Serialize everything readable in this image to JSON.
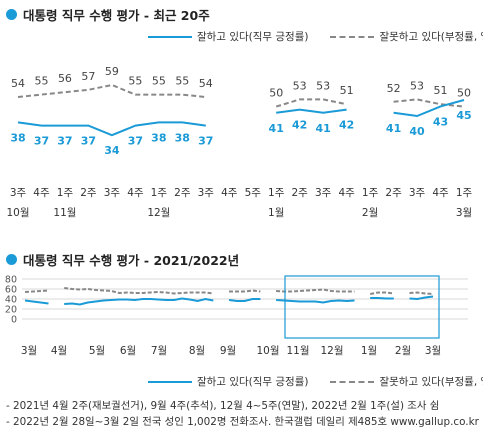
{
  "colors": {
    "approve": "#1a9ad6",
    "disapprove": "#888888",
    "highlight": "#1a9ad6"
  },
  "chart_data": [
    {
      "type": "line",
      "title": "대통령 직무 수행 평가 - 최근 20주",
      "categories": [
        "3주",
        "4주",
        "1주",
        "2주",
        "3주",
        "4주",
        "1주",
        "2주",
        "3주",
        "4주",
        "5주",
        "1주",
        "2주",
        "3주",
        "4주",
        "1주",
        "2주",
        "3주",
        "4주",
        "1주"
      ],
      "month_labels": [
        {
          "index": 0,
          "label": "10월"
        },
        {
          "index": 2,
          "label": "11월"
        },
        {
          "index": 6,
          "label": "12월"
        },
        {
          "index": 11,
          "label": "1월"
        },
        {
          "index": 15,
          "label": "2월"
        },
        {
          "index": 19,
          "label": "3월"
        }
      ],
      "series": [
        {
          "name": "잘하고 있다(직무 긍정률)",
          "values": [
            38,
            37,
            37,
            37,
            34,
            37,
            38,
            38,
            37,
            null,
            null,
            41,
            42,
            41,
            42,
            null,
            41,
            40,
            43,
            45
          ]
        },
        {
          "name": "잘못하고 있다(부정률, %)",
          "values": [
            54,
            55,
            56,
            57,
            59,
            55,
            55,
            55,
            54,
            null,
            null,
            50,
            53,
            53,
            51,
            null,
            52,
            53,
            51,
            50
          ]
        }
      ],
      "legend_position": "top-right"
    },
    {
      "type": "line",
      "title": "대통령 직무 수행 평가 - 2021/2022년",
      "yticks": [
        0,
        20,
        40,
        60,
        80
      ],
      "ylim": [
        0,
        80
      ],
      "month_labels": [
        "3월",
        "4월",
        "5월",
        "6월",
        "7월",
        "8월",
        "9월",
        "10월",
        "11월",
        "12월",
        "1월",
        "2월",
        "3월"
      ],
      "approve_segments": [
        [
          37,
          35,
          33,
          31
        ],
        [
          30,
          31,
          29,
          33,
          35,
          37,
          38,
          39,
          39,
          38,
          40,
          40,
          39,
          38,
          38,
          41,
          39,
          36,
          40,
          37
        ],
        [
          38,
          36,
          36,
          40,
          40
        ],
        [
          38,
          37,
          36,
          35,
          35,
          35,
          33,
          36,
          37,
          36,
          37
        ],
        [
          42,
          42,
          41,
          41
        ],
        [
          41,
          40,
          43,
          45
        ]
      ],
      "disapprove_segments": [
        [
          54,
          55,
          56,
          57
        ],
        [
          62,
          60,
          59,
          60,
          58,
          57,
          56,
          52,
          53,
          52,
          52,
          53,
          54,
          53,
          51,
          52,
          53,
          53,
          53,
          51
        ],
        [
          55,
          55,
          55,
          57,
          55
        ],
        [
          56,
          55,
          55,
          56,
          57,
          58,
          59,
          56,
          55,
          55,
          55
        ],
        [
          50,
          53,
          53,
          51
        ],
        [
          52,
          53,
          51,
          50
        ]
      ],
      "legend_position": "bottom"
    }
  ],
  "legend": {
    "approve": "잘하고 있다(직무 긍정률)",
    "disapprove": "잘못하고 있다(부정률, %)"
  },
  "notes": [
    "- 2021년 4월 2주(재보궐선거), 9월 4주(추석), 12월 4~5주(연말), 2022년 2월 1주(설) 조사 쉼",
    "- 2022년 2월 28일~3월 2일 전국 성인 1,002명 전화조사. 한국갤럽 데일리 제485호 www.gallup.co.kr"
  ]
}
